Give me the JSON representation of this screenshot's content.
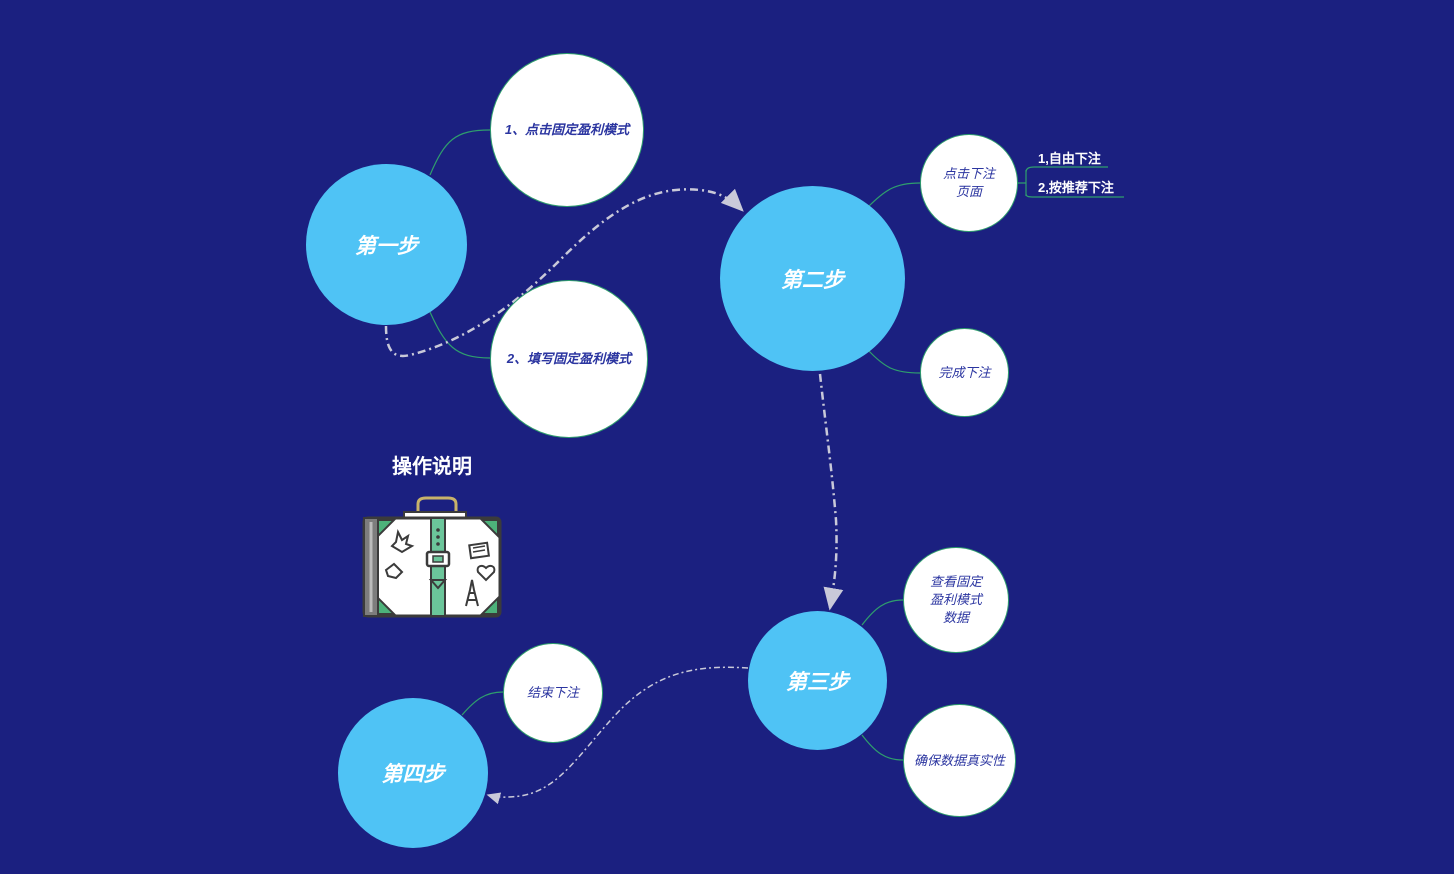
{
  "title": "操作说明",
  "colors": {
    "background": "#1b2080",
    "main_node": "#4fc3f5",
    "sub_node": "#ffffff",
    "connector": "#2f9e6d",
    "sub_text": "#2b35a0"
  },
  "steps": [
    {
      "label": "第一步"
    },
    {
      "label": "第二步"
    },
    {
      "label": "第三步"
    },
    {
      "label": "第四步"
    }
  ],
  "details": {
    "step1_a": "1、点击固定盈利模式",
    "step1_b": "2、填写固定盈利模式",
    "step2_a": "点击下注页面",
    "step2_b": "完成下注",
    "step3_a": "查看固定盈利模式数据",
    "step3_b": "确保数据真实性",
    "step4_a": "结束下注"
  },
  "leaves": {
    "bet_free": "1,自由下注",
    "bet_recommended": "2,按推荐下注"
  },
  "icon": "suitcase-icon"
}
